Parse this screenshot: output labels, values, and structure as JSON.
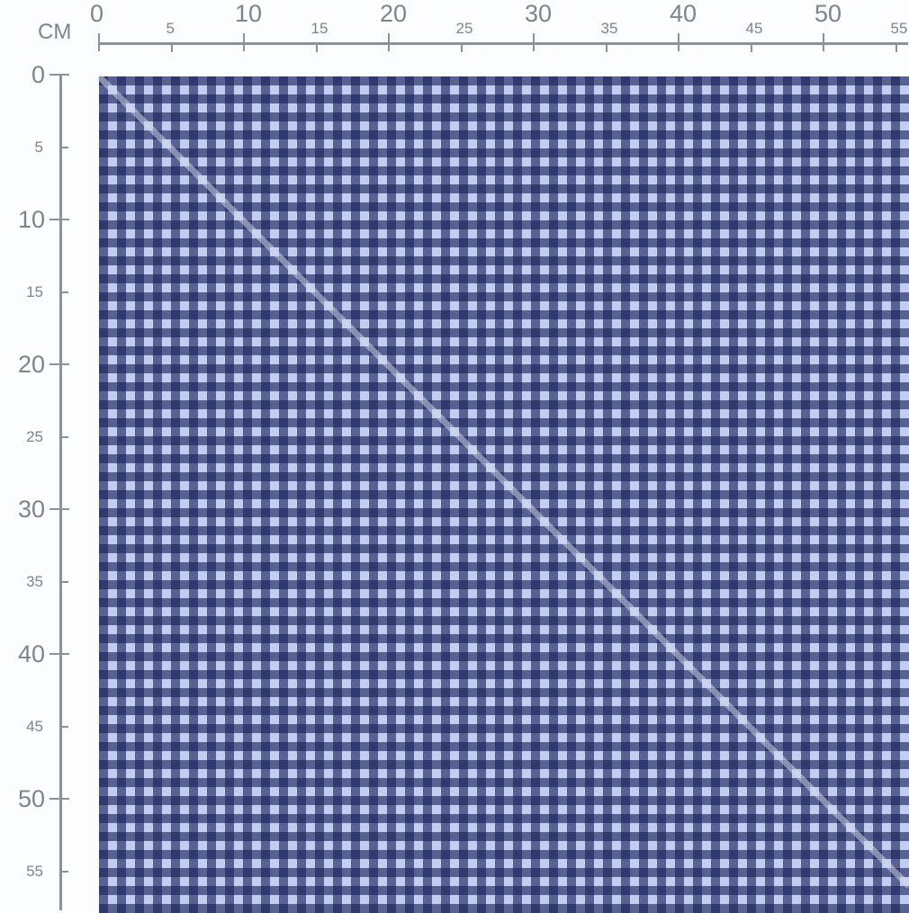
{
  "ruler": {
    "unit": "CM",
    "top_labels": [
      "0",
      "5",
      "10",
      "15",
      "20",
      "25",
      "30",
      "35",
      "40",
      "45",
      "50",
      "55"
    ],
    "left_labels": [
      "0",
      "5",
      "10",
      "15",
      "20",
      "25",
      "30",
      "35",
      "40",
      "45",
      "50",
      "55"
    ]
  },
  "fabric": {
    "pattern": "gingham check",
    "colors": {
      "dark": "#1f2a5e",
      "mid": "#6f7cb2",
      "light": "#c4cdef"
    }
  }
}
